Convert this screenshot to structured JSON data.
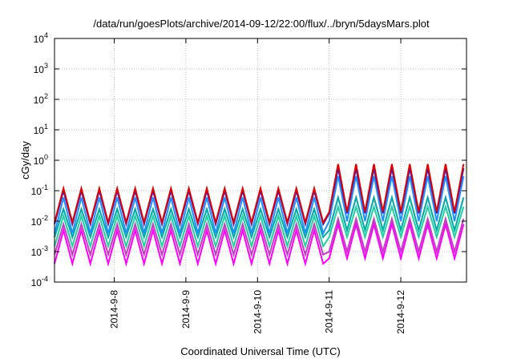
{
  "chart_data": {
    "type": "line",
    "title": "/data/run/goesPlots/archive/2014-09-12/22:00/flux/../bryn/5daysMars.plot",
    "xlabel": "Coordinated Universal Time (UTC)",
    "ylabel": "cGy/day",
    "yscale": "log",
    "ylim": [
      0.0001,
      10000
    ],
    "xlim": [
      "2014-09-07 04:00",
      "2014-09-12 22:00"
    ],
    "grid": true,
    "legend": "none",
    "y_ticks": [
      {
        "base": "10",
        "exp": "-4"
      },
      {
        "base": "10",
        "exp": "-3"
      },
      {
        "base": "10",
        "exp": "-2"
      },
      {
        "base": "10",
        "exp": "-1"
      },
      {
        "base": "10",
        "exp": "0"
      },
      {
        "base": "10",
        "exp": "1"
      },
      {
        "base": "10",
        "exp": "2"
      },
      {
        "base": "10",
        "exp": "3"
      },
      {
        "base": "10",
        "exp": "4"
      }
    ],
    "x_ticks": [
      "2014-9-8",
      "2014-9-9",
      "2014-9-10",
      "2014-9-11",
      "2014-9-12"
    ],
    "oscillation_period_hours": 6,
    "segments": [
      {
        "from": "2014-09-07 04:00",
        "to": "2014-09-11 00:00",
        "series_peaks": [
          0.12,
          0.1,
          0.06,
          0.025,
          0.015,
          0.008,
          0.005
        ],
        "series_troughs": [
          0.009,
          0.008,
          0.004,
          0.003,
          0.0015,
          0.0008,
          0.0004
        ]
      },
      {
        "from": "2014-09-11 00:00",
        "to": "2014-09-12 22:00",
        "series_peaks": [
          0.75,
          0.55,
          0.3,
          0.06,
          0.03,
          0.012,
          0.008
        ],
        "series_troughs": [
          0.02,
          0.018,
          0.01,
          0.005,
          0.003,
          0.001,
          0.0006
        ]
      }
    ],
    "series": [
      {
        "color": "#e00000"
      },
      {
        "color": "#2020e0"
      },
      {
        "color": "#1e90ff"
      },
      {
        "color": "#00a8a8"
      },
      {
        "color": "#20d0a0"
      },
      {
        "color": "#c040c0"
      },
      {
        "color": "#ff00ff"
      }
    ]
  }
}
